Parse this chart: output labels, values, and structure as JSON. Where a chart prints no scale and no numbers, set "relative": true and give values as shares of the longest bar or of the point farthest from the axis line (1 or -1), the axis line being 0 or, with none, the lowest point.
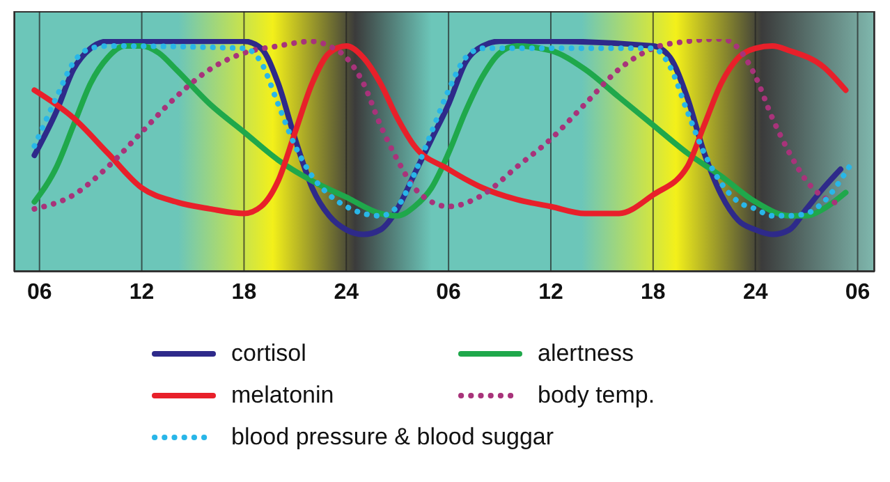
{
  "chart_data": {
    "type": "line",
    "relative": true,
    "grid": "x",
    "legend": "bottom",
    "xlim": [
      "--01-01T04:30",
      "--01-03T07:00"
    ],
    "xticks": [
      {
        "value": "--01-01T06:00",
        "label": "06"
      },
      {
        "value": "--01-01T12:00",
        "label": "12"
      },
      {
        "value": "--01-01T18:00",
        "label": "18"
      },
      {
        "value": "--01-02T00:00",
        "label": "24"
      },
      {
        "value": "--01-02T06:00",
        "label": "06"
      },
      {
        "value": "--01-02T12:00",
        "label": "12"
      },
      {
        "value": "--01-02T18:00",
        "label": "18"
      },
      {
        "value": "--01-03T00:00",
        "label": "24"
      },
      {
        "value": "--01-03T06:00",
        "label": "06"
      }
    ],
    "series": [
      {
        "name": "cortisol",
        "color": "#2e2a8a",
        "line_style": "solid",
        "x": [
          "--01-01T05:42",
          "--01-01T07:00",
          "--01-01T08:00",
          "--01-01T09:00",
          "--01-01T10:00",
          "--01-01T12:00",
          "--01-01T15:00",
          "--01-01T18:00",
          "--01-01T19:00",
          "--01-01T20:00",
          "--01-01T21:00",
          "--01-01T22:00",
          "--01-01T23:00",
          "--01-02T00:00",
          "--01-02T01:00",
          "--01-02T02:00",
          "--01-02T03:00",
          "--01-02T04:00",
          "--01-02T05:00",
          "--01-02T06:00",
          "--01-02T07:00",
          "--01-02T08:00",
          "--01-02T09:00",
          "--01-02T12:00",
          "--01-02T18:00",
          "--01-02T19:00",
          "--01-02T20:00",
          "--01-02T21:00",
          "--01-02T22:00",
          "--01-02T23:00",
          "--01-03T00:00",
          "--01-03T01:00",
          "--01-03T02:00",
          "--01-03T03:00",
          "--01-03T04:00",
          "--01-03T05:00"
        ],
        "values": [
          0.5,
          0.69,
          0.87,
          0.96,
          0.99,
          0.99,
          0.99,
          0.99,
          0.96,
          0.81,
          0.57,
          0.36,
          0.24,
          0.18,
          0.16,
          0.18,
          0.27,
          0.42,
          0.57,
          0.72,
          0.9,
          0.97,
          0.99,
          0.99,
          0.97,
          0.92,
          0.75,
          0.51,
          0.33,
          0.22,
          0.18,
          0.16,
          0.18,
          0.27,
          0.36,
          0.44
        ]
      },
      {
        "name": "alertness",
        "color": "#1fa84b",
        "line_style": "solid",
        "x": [
          "--01-01T05:42",
          "--01-01T07:00",
          "--01-01T08:00",
          "--01-01T09:00",
          "--01-01T10:00",
          "--01-01T11:00",
          "--01-01T12:00",
          "--01-01T13:00",
          "--01-01T14:00",
          "--01-01T16:00",
          "--01-01T18:00",
          "--01-01T20:00",
          "--01-01T22:00",
          "--01-02T00:00",
          "--01-02T02:00",
          "--01-02T03:00",
          "--01-02T04:00",
          "--01-02T05:00",
          "--01-02T06:00",
          "--01-02T07:00",
          "--01-02T08:00",
          "--01-02T09:00",
          "--01-02T10:00",
          "--01-02T12:00",
          "--01-02T14:00",
          "--01-02T16:00",
          "--01-02T18:00",
          "--01-02T20:00",
          "--01-02T22:00",
          "--01-03T00:00",
          "--01-03T02:00",
          "--01-03T03:00",
          "--01-03T04:00",
          "--01-03T05:18"
        ],
        "values": [
          0.3,
          0.45,
          0.63,
          0.81,
          0.92,
          0.97,
          0.97,
          0.94,
          0.87,
          0.72,
          0.6,
          0.48,
          0.39,
          0.32,
          0.25,
          0.24,
          0.28,
          0.36,
          0.51,
          0.69,
          0.84,
          0.94,
          0.97,
          0.95,
          0.87,
          0.75,
          0.63,
          0.51,
          0.41,
          0.3,
          0.24,
          0.24,
          0.27,
          0.34
        ]
      },
      {
        "name": "melatonin",
        "color": "#e8202a",
        "line_style": "solid",
        "x": [
          "--01-01T05:42",
          "--01-01T08:00",
          "--01-01T10:00",
          "--01-01T12:00",
          "--01-01T14:00",
          "--01-01T16:00",
          "--01-01T18:00",
          "--01-01T19:00",
          "--01-01T20:00",
          "--01-01T21:00",
          "--01-01T22:00",
          "--01-01T23:00",
          "--01-02T00:00",
          "--01-02T01:00",
          "--01-02T02:00",
          "--01-02T03:00",
          "--01-02T04:00",
          "--01-02T06:00",
          "--01-02T08:00",
          "--01-02T10:00",
          "--01-02T12:00",
          "--01-02T14:00",
          "--01-02T16:00",
          "--01-02T18:00",
          "--01-02T20:00",
          "--01-02T21:00",
          "--01-02T22:00",
          "--01-02T23:00",
          "--01-03T00:00",
          "--01-03T01:00",
          "--01-03T02:00",
          "--01-03T04:00",
          "--01-03T05:18"
        ],
        "values": [
          0.78,
          0.66,
          0.51,
          0.36,
          0.3,
          0.27,
          0.25,
          0.28,
          0.39,
          0.6,
          0.81,
          0.94,
          0.97,
          0.92,
          0.81,
          0.66,
          0.54,
          0.44,
          0.36,
          0.31,
          0.28,
          0.25,
          0.25,
          0.33,
          0.45,
          0.63,
          0.81,
          0.92,
          0.96,
          0.97,
          0.95,
          0.88,
          0.78
        ]
      },
      {
        "name": "body temp.",
        "color": "#a8337a",
        "line_style": "dotted",
        "x": [
          "--01-01T05:42",
          "--01-01T08:00",
          "--01-01T10:00",
          "--01-01T12:00",
          "--01-01T14:00",
          "--01-01T16:00",
          "--01-01T18:00",
          "--01-01T20:00",
          "--01-01T22:00",
          "--01-01T23:00",
          "--01-02T00:00",
          "--01-02T01:00",
          "--01-02T02:00",
          "--01-02T03:00",
          "--01-02T04:00",
          "--01-02T05:00",
          "--01-02T06:00",
          "--01-02T08:00",
          "--01-02T10:00",
          "--01-02T12:00",
          "--01-02T14:00",
          "--01-02T16:00",
          "--01-02T18:00",
          "--01-02T20:00",
          "--01-02T22:00",
          "--01-02T23:00",
          "--01-03T00:00",
          "--01-03T01:00",
          "--01-03T02:00",
          "--01-03T03:00",
          "--01-03T04:00",
          "--01-03T05:00"
        ],
        "values": [
          0.27,
          0.33,
          0.45,
          0.6,
          0.75,
          0.87,
          0.94,
          0.97,
          0.99,
          0.97,
          0.92,
          0.81,
          0.63,
          0.48,
          0.36,
          0.3,
          0.28,
          0.33,
          0.45,
          0.57,
          0.72,
          0.87,
          0.96,
          0.99,
          1,
          0.96,
          0.84,
          0.66,
          0.51,
          0.39,
          0.32,
          0.29
        ]
      },
      {
        "name": "blood pressure & blood suggar",
        "color": "#29b6e8",
        "line_style": "dotted",
        "x": [
          "--01-01T05:42",
          "--01-01T07:00",
          "--01-01T08:00",
          "--01-01T09:00",
          "--01-01T10:00",
          "--01-01T18:00",
          "--01-01T19:00",
          "--01-01T20:00",
          "--01-01T21:00",
          "--01-01T22:00",
          "--01-01T23:00",
          "--01-02T00:00",
          "--01-02T01:00",
          "--01-02T02:00",
          "--01-02T03:00",
          "--01-02T04:00",
          "--01-02T05:00",
          "--01-02T06:00",
          "--01-02T07:00",
          "--01-02T08:00",
          "--01-02T18:00",
          "--01-02T19:00",
          "--01-02T20:00",
          "--01-02T21:00",
          "--01-02T22:00",
          "--01-02T23:00",
          "--01-03T00:00",
          "--01-03T01:00",
          "--01-03T02:00",
          "--01-03T03:00",
          "--01-03T04:00",
          "--01-03T05:30"
        ],
        "values": [
          0.54,
          0.75,
          0.9,
          0.96,
          0.97,
          0.96,
          0.9,
          0.72,
          0.54,
          0.41,
          0.33,
          0.28,
          0.25,
          0.24,
          0.28,
          0.42,
          0.6,
          0.78,
          0.92,
          0.96,
          0.96,
          0.88,
          0.69,
          0.51,
          0.38,
          0.3,
          0.27,
          0.24,
          0.24,
          0.25,
          0.3,
          0.45
        ]
      }
    ]
  }
}
